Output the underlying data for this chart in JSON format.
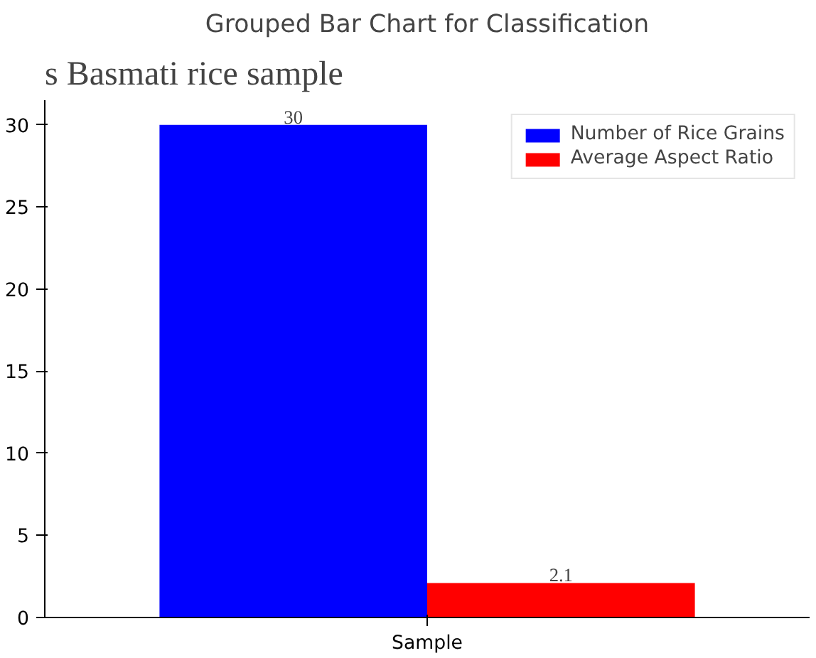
{
  "chart_data": {
    "type": "bar",
    "title": "Grouped Bar Chart for Classification",
    "annotations": [
      "s Basmati rice sample"
    ],
    "categories": [
      "Sample"
    ],
    "series": [
      {
        "name": "Number of Rice Grains",
        "color": "#0000ff",
        "values": [
          30
        ]
      },
      {
        "name": "Average Aspect Ratio",
        "color": "#ff0000",
        "values": [
          2.1
        ]
      }
    ],
    "ylim": [
      0,
      31.5
    ],
    "yticks": [
      0,
      5,
      10,
      15,
      20,
      25,
      30
    ],
    "grid": false,
    "legend": "top right",
    "data_labels": true
  }
}
